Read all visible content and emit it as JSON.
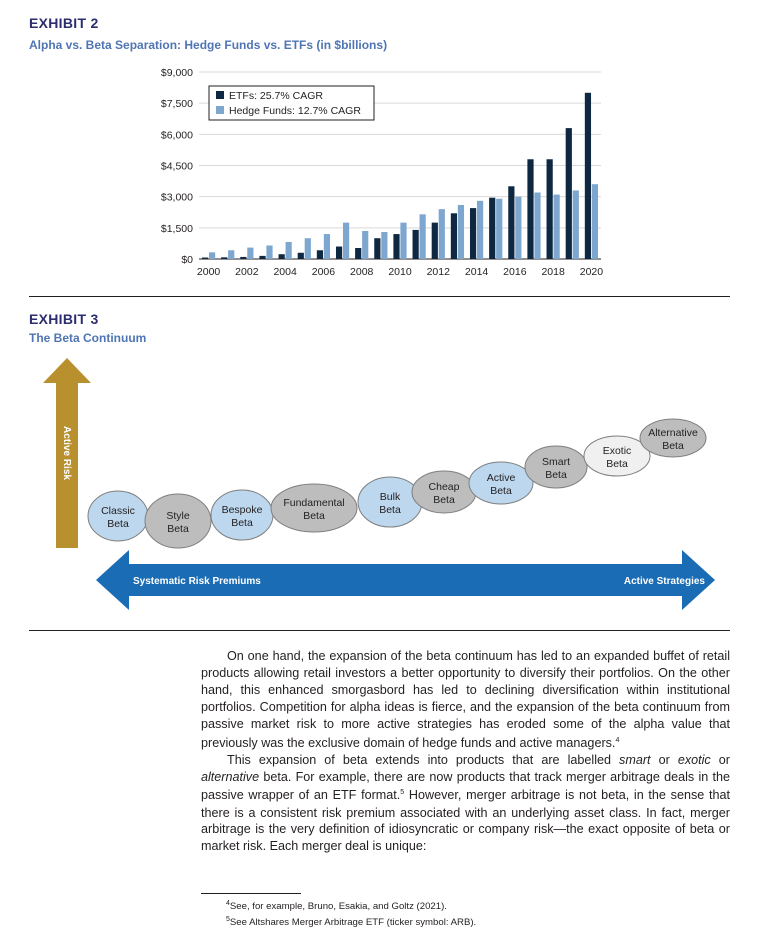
{
  "exhibit2": {
    "label": "EXHIBIT 2",
    "title": "Alpha vs. Beta Separation: Hedge Funds vs. ETFs (in $billions)"
  },
  "chart_data": {
    "type": "bar",
    "categories": [
      "2000",
      "2001",
      "2002",
      "2003",
      "2004",
      "2005",
      "2006",
      "2007",
      "2008",
      "2009",
      "2010",
      "2011",
      "2012",
      "2013",
      "2014",
      "2015",
      "2016",
      "2017",
      "2018",
      "2019",
      "2020"
    ],
    "x_tick_labels": [
      "2000",
      "2002",
      "2004",
      "2006",
      "2008",
      "2010",
      "2012",
      "2014",
      "2016",
      "2018",
      "2020"
    ],
    "y_tick_labels": [
      "$0",
      "$1,500",
      "$3,000",
      "$4,500",
      "$6,000",
      "$7,500",
      "$9,000"
    ],
    "ylim": [
      0,
      9000
    ],
    "grid": true,
    "legend_position": "top-left",
    "series": [
      {
        "name": "ETFs: 25.7% CAGR",
        "color": "#0e2841",
        "values": [
          70,
          80,
          100,
          150,
          230,
          300,
          420,
          600,
          530,
          1000,
          1200,
          1400,
          1750,
          2200,
          2450,
          2950,
          3500,
          4800,
          4800,
          6300,
          8000
        ]
      },
      {
        "name": "Hedge Funds: 12.7% CAGR",
        "color": "#7ea7d0",
        "values": [
          320,
          420,
          550,
          650,
          820,
          1000,
          1200,
          1750,
          1350,
          1300,
          1750,
          2150,
          2400,
          2600,
          2800,
          2900,
          3000,
          3200,
          3100,
          3300,
          3600
        ]
      }
    ]
  },
  "exhibit3": {
    "label": "EXHIBIT 3",
    "title": "The Beta Continuum",
    "vertical_arrow_label": "Active Risk",
    "horizontal_left_label": "Systematic Risk Premiums",
    "horizontal_right_label": "Active Strategies",
    "ovals": [
      {
        "line1": "Classic",
        "line2": "Beta",
        "fill": "#bcd7ee"
      },
      {
        "line1": "Style",
        "line2": "Beta",
        "fill": "#bdbdbd"
      },
      {
        "line1": "Bespoke",
        "line2": "Beta",
        "fill": "#bcd7ee"
      },
      {
        "line1": "Fundamental",
        "line2": "Beta",
        "fill": "#bdbdbd"
      },
      {
        "line1": "Bulk",
        "line2": "Beta",
        "fill": "#bcd7ee"
      },
      {
        "line1": "Cheap",
        "line2": "Beta",
        "fill": "#bdbdbd"
      },
      {
        "line1": "Active",
        "line2": "Beta",
        "fill": "#bcd7ee"
      },
      {
        "line1": "Smart",
        "line2": "Beta",
        "fill": "#bdbdbd"
      },
      {
        "line1": "Exotic",
        "line2": "Beta",
        "fill": "#f0f0f0"
      },
      {
        "line1": "Alternative",
        "line2": "Beta",
        "fill": "#bdbdbd"
      }
    ],
    "arrow_gold": "#b8902e",
    "arrow_blue": "#1a6cb5"
  },
  "body": {
    "p1": "On one hand, the expansion of the beta continuum has led to an expanded buffet of retail products allowing retail investors a better opportunity to diversify their portfolios. On the other hand, this enhanced smorgasbord has led to declining diversification within institutional portfolios. Competition for alpha ideas is fierce, and the expansion of the beta continuum from passive market risk to more active strategies has eroded some of the alpha value that previously was the exclusive domain of hedge funds and active managers.",
    "p1_ref": "4",
    "p2_a": "This expansion of beta extends into products that are labelled ",
    "p2_smart": "smart",
    "p2_or1": " or ",
    "p2_exotic": "exotic",
    "p2_or2": " or ",
    "p2_alternative": "alternative",
    "p2_b": " beta. For example, there are now products that track merger arbitrage deals in the passive wrapper of an ETF format.",
    "p2_ref": "5",
    "p2_c": " However, merger arbitrage is not beta, in the sense that there is a consistent risk premium associated with an underlying asset class. In fact, merger arbitrage is the very definition of idiosyncratic or company risk—the exact opposite of beta or market risk. Each merger deal is unique:"
  },
  "footnotes": [
    {
      "num": "4",
      "text": "See, for example, Bruno, Esakia, and Goltz (2021)."
    },
    {
      "num": "5",
      "text": "See Altshares Merger Arbitrage ETF (ticker symbol: ARB)."
    }
  ]
}
